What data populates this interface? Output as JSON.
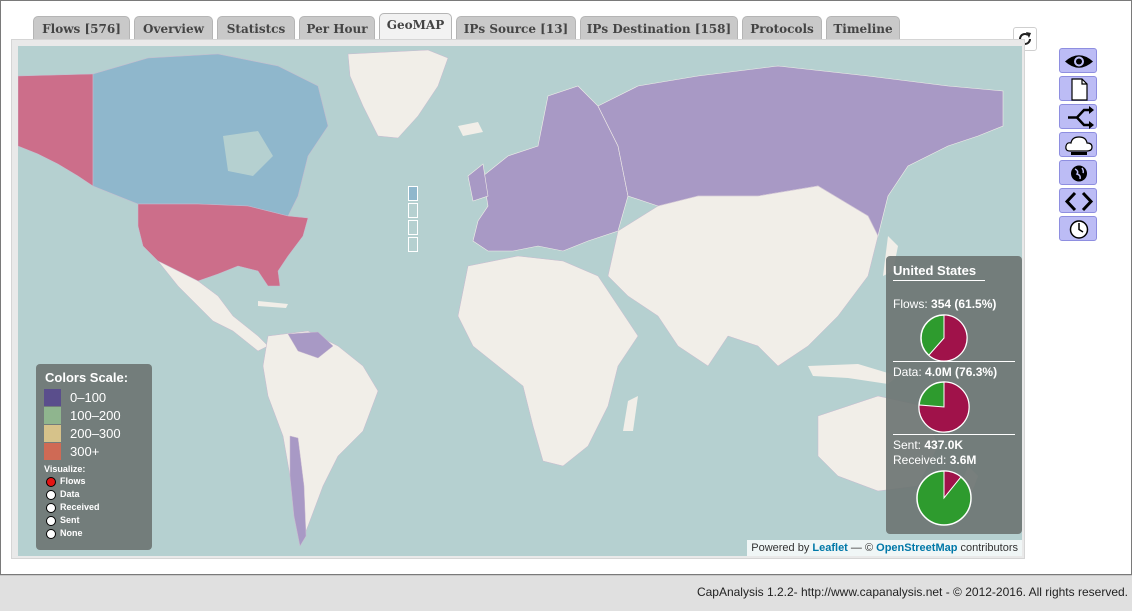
{
  "tabs": [
    {
      "label": "Flows [576]"
    },
    {
      "label": "Overview"
    },
    {
      "label": "Statistcs"
    },
    {
      "label": "Per Hour"
    },
    {
      "label": "GeoMAP",
      "active": true
    },
    {
      "label": "IPs Source [13]"
    },
    {
      "label": "IPs Destination [158]"
    },
    {
      "label": "Protocols"
    },
    {
      "label": "Timeline"
    }
  ],
  "refresh_icon": "refresh-icon",
  "map": {
    "highlighted_countries": [
      "United States",
      "Greenland",
      "Russia",
      "Europe",
      "Venezuela",
      "Chile"
    ],
    "colors": {
      "ocean": "#b5d0d0",
      "land": "#f1eee8",
      "high": "#cc6e8a",
      "mid_blue": "#8fb7cc",
      "purple": "#a899c5"
    }
  },
  "legend": {
    "title": "Colors Scale:",
    "scale": [
      {
        "label": "0–100",
        "color": "#5a4e8c"
      },
      {
        "label": "100–200",
        "color": "#8fb58e"
      },
      {
        "label": "200–300",
        "color": "#d6c28a"
      },
      {
        "label": "300+",
        "color": "#cf6a55"
      }
    ],
    "visualize_title": "Visualize:",
    "visualize_options": [
      {
        "label": "Flows",
        "checked": true
      },
      {
        "label": "Data",
        "checked": false
      },
      {
        "label": "Received",
        "checked": false
      },
      {
        "label": "Sent",
        "checked": false
      },
      {
        "label": "None",
        "checked": false
      }
    ]
  },
  "info": {
    "country": "United States",
    "flows_label": "Flows:",
    "flows_value": "354 (61.5%)",
    "flows_fraction": 0.615,
    "data_label": "Data:",
    "data_value": "4.0M (76.3%)",
    "data_fraction": 0.763,
    "sent_label": "Sent:",
    "sent_value": "437.0K",
    "received_label": "Received:",
    "received_value": "3.6M",
    "received_fraction": 0.108,
    "pie_colors": {
      "primary": "#a0124a",
      "secondary": "#2e9b2e"
    }
  },
  "attribution": {
    "prefix": "Powered by",
    "leaflet": "Leaflet",
    "dash": "— ©",
    "osm": "OpenStreetMap",
    "suffix": "contributors"
  },
  "toolbar": [
    {
      "icon": "eye-icon"
    },
    {
      "icon": "document-icon"
    },
    {
      "icon": "branch-icon"
    },
    {
      "icon": "cloud-protocols-icon"
    },
    {
      "icon": "globe-icon"
    },
    {
      "icon": "code-icon"
    },
    {
      "icon": "clock-icon"
    }
  ],
  "footer": {
    "text": "CapAnalysis 1.2.2- http://www.capanalysis.net - © 2012-2016. All rights reserved."
  }
}
